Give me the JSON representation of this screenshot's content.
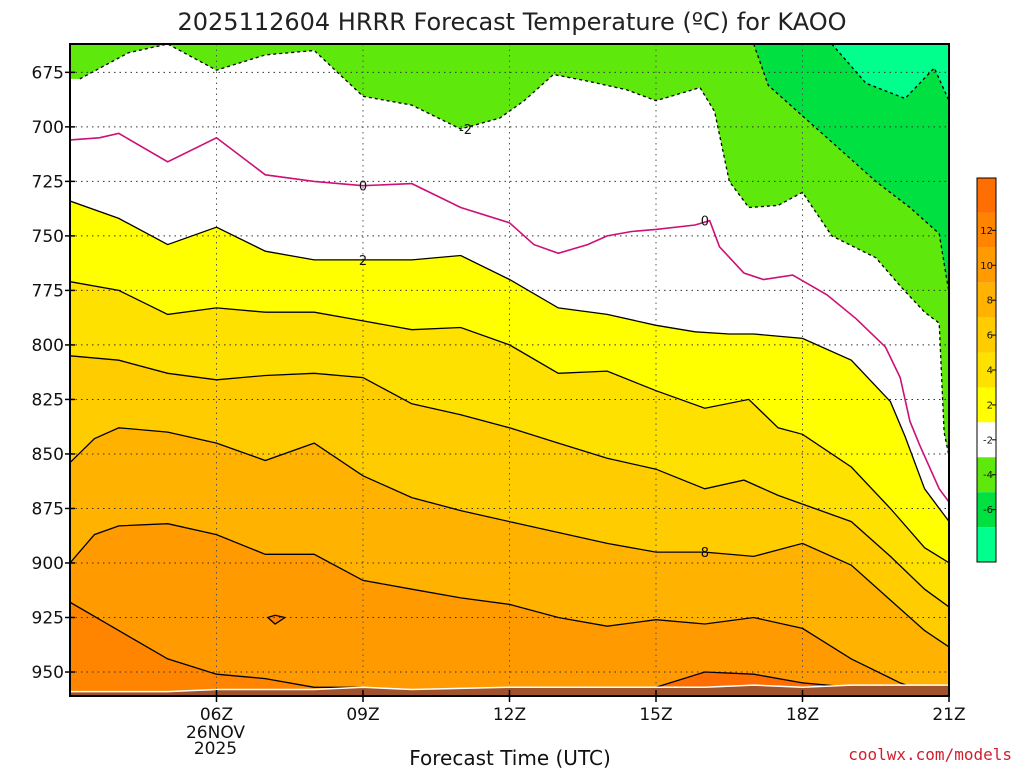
{
  "chart_data": {
    "type": "time-height contour",
    "title": "2025112604 HRRR Forecast Temperature (ºC) for KAOO",
    "xlabel": "Forecast Time (UTC)",
    "credit": "coolwx.com/models",
    "x_ticks": [
      {
        "hour": 6,
        "label": "06Z",
        "sub": [
          "26NOV",
          "2025"
        ]
      },
      {
        "hour": 9,
        "label": "09Z"
      },
      {
        "hour": 12,
        "label": "12Z"
      },
      {
        "hour": 15,
        "label": "15Z"
      },
      {
        "hour": 18,
        "label": "18Z"
      },
      {
        "hour": 21,
        "label": "21Z"
      }
    ],
    "xlim": [
      3,
      21
    ],
    "y_ticks": [
      675,
      700,
      725,
      750,
      775,
      800,
      825,
      850,
      875,
      900,
      925,
      950
    ],
    "ylim": [
      662,
      961
    ],
    "colorbar": {
      "levels": [
        -8,
        -6,
        -4,
        -2,
        2,
        4,
        6,
        8,
        10,
        12,
        14
      ],
      "colors": [
        "#00ff8c",
        "#00e040",
        "#5ee80b",
        "#ffffff",
        "#ffff00",
        "#ffe100",
        "#ffcc00",
        "#ffb300",
        "#ff9a00",
        "#ff8500",
        "#ff6e00"
      ],
      "labels": [
        "-6",
        "-4",
        "-2",
        "2",
        "4",
        "6",
        "8",
        "10",
        "12"
      ]
    },
    "terrain_color": "#a0522d",
    "contour_colors": {
      "zero": "#cc1077",
      "other": "#000000"
    },
    "contours": [
      {
        "value": -2,
        "label": "-2",
        "label_at": [
          11.1,
          701
        ],
        "points": [
          [
            3.2,
            678
          ],
          [
            4.2,
            666
          ],
          [
            5,
            662
          ],
          [
            6,
            674
          ],
          [
            7,
            667
          ],
          [
            8,
            665
          ],
          [
            9,
            686
          ],
          [
            10,
            690
          ],
          [
            11,
            701
          ],
          [
            11.8,
            696
          ],
          [
            12.3,
            688
          ],
          [
            12.9,
            676
          ],
          [
            13.6,
            679
          ],
          [
            14.4,
            683
          ],
          [
            15,
            688
          ],
          [
            15.9,
            682
          ],
          [
            16.2,
            693
          ],
          [
            16.5,
            725
          ],
          [
            16.9,
            737
          ],
          [
            17.5,
            736
          ],
          [
            18,
            730
          ],
          [
            18.6,
            750
          ],
          [
            19.5,
            760
          ],
          [
            20,
            773
          ],
          [
            20.5,
            785
          ],
          [
            20.8,
            790
          ],
          [
            20.9,
            840
          ],
          [
            21,
            851
          ],
          [
            21.2,
            861
          ],
          [
            21.3,
            868
          ]
        ]
      },
      {
        "value": -4,
        "points": [
          [
            17,
            662
          ],
          [
            17.3,
            681
          ],
          [
            18.3,
            701
          ],
          [
            19.5,
            725
          ],
          [
            20.2,
            737
          ],
          [
            20.8,
            749
          ],
          [
            21,
            776
          ],
          [
            21.1,
            816
          ],
          [
            21.3,
            838
          ],
          [
            21.3,
            850
          ]
        ]
      },
      {
        "value": -6,
        "points": [
          [
            18.6,
            662
          ],
          [
            19.3,
            680
          ],
          [
            20.1,
            687
          ],
          [
            20.7,
            673
          ],
          [
            21.1,
            693
          ],
          [
            21.2,
            746
          ]
        ]
      },
      {
        "value": 0,
        "label": "0",
        "label_at": [
          9,
          727
        ],
        "points": [
          [
            3,
            706
          ],
          [
            3.6,
            705
          ],
          [
            4,
            703
          ],
          [
            5,
            716
          ],
          [
            6,
            705
          ],
          [
            7,
            722
          ],
          [
            8,
            725
          ],
          [
            9,
            727
          ],
          [
            10,
            726
          ],
          [
            11,
            737
          ],
          [
            12,
            744
          ],
          [
            12.5,
            754
          ],
          [
            13,
            758
          ],
          [
            13.6,
            754
          ],
          [
            14,
            750
          ],
          [
            14.5,
            748
          ],
          [
            15,
            747
          ],
          [
            15.8,
            745
          ],
          [
            16.1,
            743
          ],
          [
            16.3,
            755
          ],
          [
            16.8,
            767
          ],
          [
            17.2,
            770
          ],
          [
            17.8,
            768
          ],
          [
            18.5,
            777
          ],
          [
            19.1,
            788
          ],
          [
            19.7,
            801
          ],
          [
            20,
            815
          ],
          [
            20.2,
            835
          ],
          [
            20.4,
            846
          ],
          [
            20.8,
            866
          ],
          [
            21.3,
            881
          ],
          [
            21.3,
            889
          ]
        ]
      },
      {
        "value": 0,
        "label": "0",
        "label_at": [
          16,
          743
        ],
        "show_line": false,
        "points": []
      },
      {
        "value": 2,
        "label": "2",
        "label_at": [
          9,
          761
        ],
        "points": [
          [
            3,
            734
          ],
          [
            4,
            742
          ],
          [
            5,
            754
          ],
          [
            6,
            746
          ],
          [
            7,
            757
          ],
          [
            8,
            761
          ],
          [
            9,
            761
          ],
          [
            10,
            761
          ],
          [
            11,
            759
          ],
          [
            12,
            770
          ],
          [
            13,
            783
          ],
          [
            14,
            786
          ],
          [
            15,
            791
          ],
          [
            15.8,
            794
          ],
          [
            16.5,
            795
          ],
          [
            17,
            795
          ],
          [
            18,
            797
          ],
          [
            19,
            807
          ],
          [
            19.8,
            826
          ],
          [
            20.1,
            842
          ],
          [
            20.5,
            866
          ],
          [
            21.2,
            887
          ],
          [
            21.3,
            893
          ]
        ]
      },
      {
        "value": 4,
        "points": [
          [
            3,
            771
          ],
          [
            4,
            775
          ],
          [
            5,
            786
          ],
          [
            6,
            783
          ],
          [
            7,
            785
          ],
          [
            8,
            785
          ],
          [
            9,
            789
          ],
          [
            10,
            793
          ],
          [
            11,
            792
          ],
          [
            12,
            800
          ],
          [
            13,
            813
          ],
          [
            14,
            812
          ],
          [
            15,
            821
          ],
          [
            16,
            829
          ],
          [
            16.9,
            825
          ],
          [
            17.5,
            838
          ],
          [
            18,
            841
          ],
          [
            19,
            856
          ],
          [
            19.8,
            875
          ],
          [
            20.5,
            893
          ],
          [
            21.3,
            904
          ]
        ]
      },
      {
        "value": 6,
        "points": [
          [
            3,
            805
          ],
          [
            4,
            807
          ],
          [
            5,
            813
          ],
          [
            6,
            816
          ],
          [
            7,
            814
          ],
          [
            8,
            813
          ],
          [
            9,
            815
          ],
          [
            10,
            827
          ],
          [
            11,
            832
          ],
          [
            12,
            838
          ],
          [
            13,
            845
          ],
          [
            14,
            852
          ],
          [
            15,
            857
          ],
          [
            16,
            866
          ],
          [
            16.8,
            862
          ],
          [
            17.5,
            869
          ],
          [
            18,
            873
          ],
          [
            19,
            881
          ],
          [
            19.8,
            897
          ],
          [
            20.5,
            912
          ],
          [
            21.3,
            925
          ]
        ]
      },
      {
        "value": 8,
        "label": "8",
        "label_at": [
          16,
          895
        ],
        "points": [
          [
            3,
            854
          ],
          [
            3.5,
            843
          ],
          [
            4,
            838
          ],
          [
            5,
            840
          ],
          [
            6,
            845
          ],
          [
            7,
            853
          ],
          [
            8,
            845
          ],
          [
            9,
            860
          ],
          [
            10,
            870
          ],
          [
            11,
            876
          ],
          [
            12,
            881
          ],
          [
            13,
            886
          ],
          [
            14,
            891
          ],
          [
            15,
            895
          ],
          [
            16,
            895
          ],
          [
            17,
            897
          ],
          [
            18,
            891
          ],
          [
            19,
            901
          ],
          [
            19.8,
            917
          ],
          [
            20.5,
            931
          ],
          [
            21.3,
            943
          ]
        ]
      },
      {
        "value": 10,
        "points": [
          [
            3,
            900
          ],
          [
            3.5,
            887
          ],
          [
            4,
            883
          ],
          [
            5,
            882
          ],
          [
            6,
            887
          ],
          [
            7,
            896
          ],
          [
            8,
            896
          ],
          [
            9,
            908
          ],
          [
            10,
            912
          ],
          [
            11,
            916
          ],
          [
            12,
            919
          ],
          [
            13,
            925
          ],
          [
            14,
            929
          ],
          [
            15,
            926
          ],
          [
            16,
            928
          ],
          [
            17,
            925
          ],
          [
            18,
            930
          ],
          [
            19,
            944
          ],
          [
            20,
            955
          ],
          [
            20.5,
            959
          ]
        ]
      },
      {
        "value": 12,
        "points": [
          [
            3,
            918
          ],
          [
            4,
            931
          ],
          [
            5,
            944
          ],
          [
            6,
            951
          ],
          [
            7,
            953
          ],
          [
            8,
            957
          ],
          [
            9,
            957
          ]
        ]
      },
      {
        "value": 12,
        "points": [
          [
            14.5,
            959
          ],
          [
            15,
            957
          ],
          [
            16,
            950
          ],
          [
            17,
            951
          ],
          [
            18,
            955
          ],
          [
            19,
            957
          ]
        ]
      },
      {
        "value": 12,
        "closed": true,
        "points": [
          [
            7.05,
            925
          ],
          [
            7.2,
            924
          ],
          [
            7.4,
            925
          ],
          [
            7.2,
            928
          ]
        ]
      }
    ],
    "terrain": [
      [
        3,
        959
      ],
      [
        5,
        959
      ],
      [
        6,
        958
      ],
      [
        7,
        958
      ],
      [
        8,
        958
      ],
      [
        9,
        957
      ],
      [
        10,
        958
      ],
      [
        12,
        957
      ],
      [
        13.5,
        957
      ],
      [
        15,
        957
      ],
      [
        16,
        957
      ],
      [
        17,
        956
      ],
      [
        18,
        957
      ],
      [
        19,
        956
      ],
      [
        20,
        956
      ],
      [
        21,
        956
      ]
    ]
  }
}
